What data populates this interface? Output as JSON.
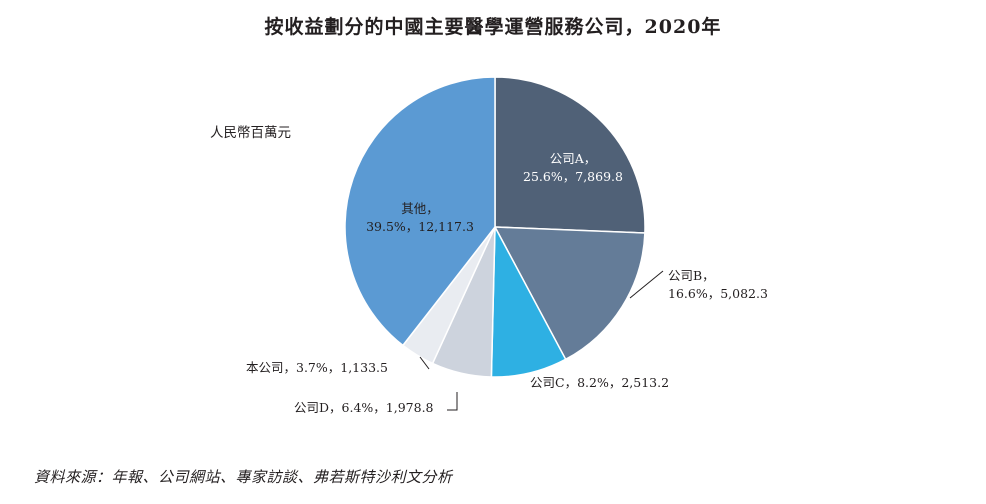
{
  "chart_data": {
    "type": "pie",
    "title": "按收益劃分的中國主要醫學運營服務公司，2020年",
    "unit_label": "人民幣百萬元",
    "slices": [
      {
        "name": "公司A",
        "percent": "25.6%",
        "value": 7869.8,
        "value_text": "7,869.8",
        "color": "#506177"
      },
      {
        "name": "公司B",
        "percent": "16.6%",
        "value": 5082.3,
        "value_text": "5,082.3",
        "color": "#647c98"
      },
      {
        "name": "公司C",
        "percent": "8.2%",
        "value": 2513.2,
        "value_text": "2,513.2",
        "color": "#2eb0e3"
      },
      {
        "name": "公司D",
        "percent": "6.4%",
        "value": 1978.8,
        "value_text": "1,978.8",
        "color": "#cdd3dd"
      },
      {
        "name": "本公司",
        "percent": "3.7%",
        "value": 1133.5,
        "value_text": "1,133.5",
        "color": "#e9ecf1"
      },
      {
        "name": "其他",
        "percent": "39.5%",
        "value": 12117.3,
        "value_text": "12,117.3",
        "color": "#5b9ad3"
      }
    ]
  },
  "source_note": "資料來源：年報、公司網站、專家訪談、弗若斯特沙利文分析"
}
